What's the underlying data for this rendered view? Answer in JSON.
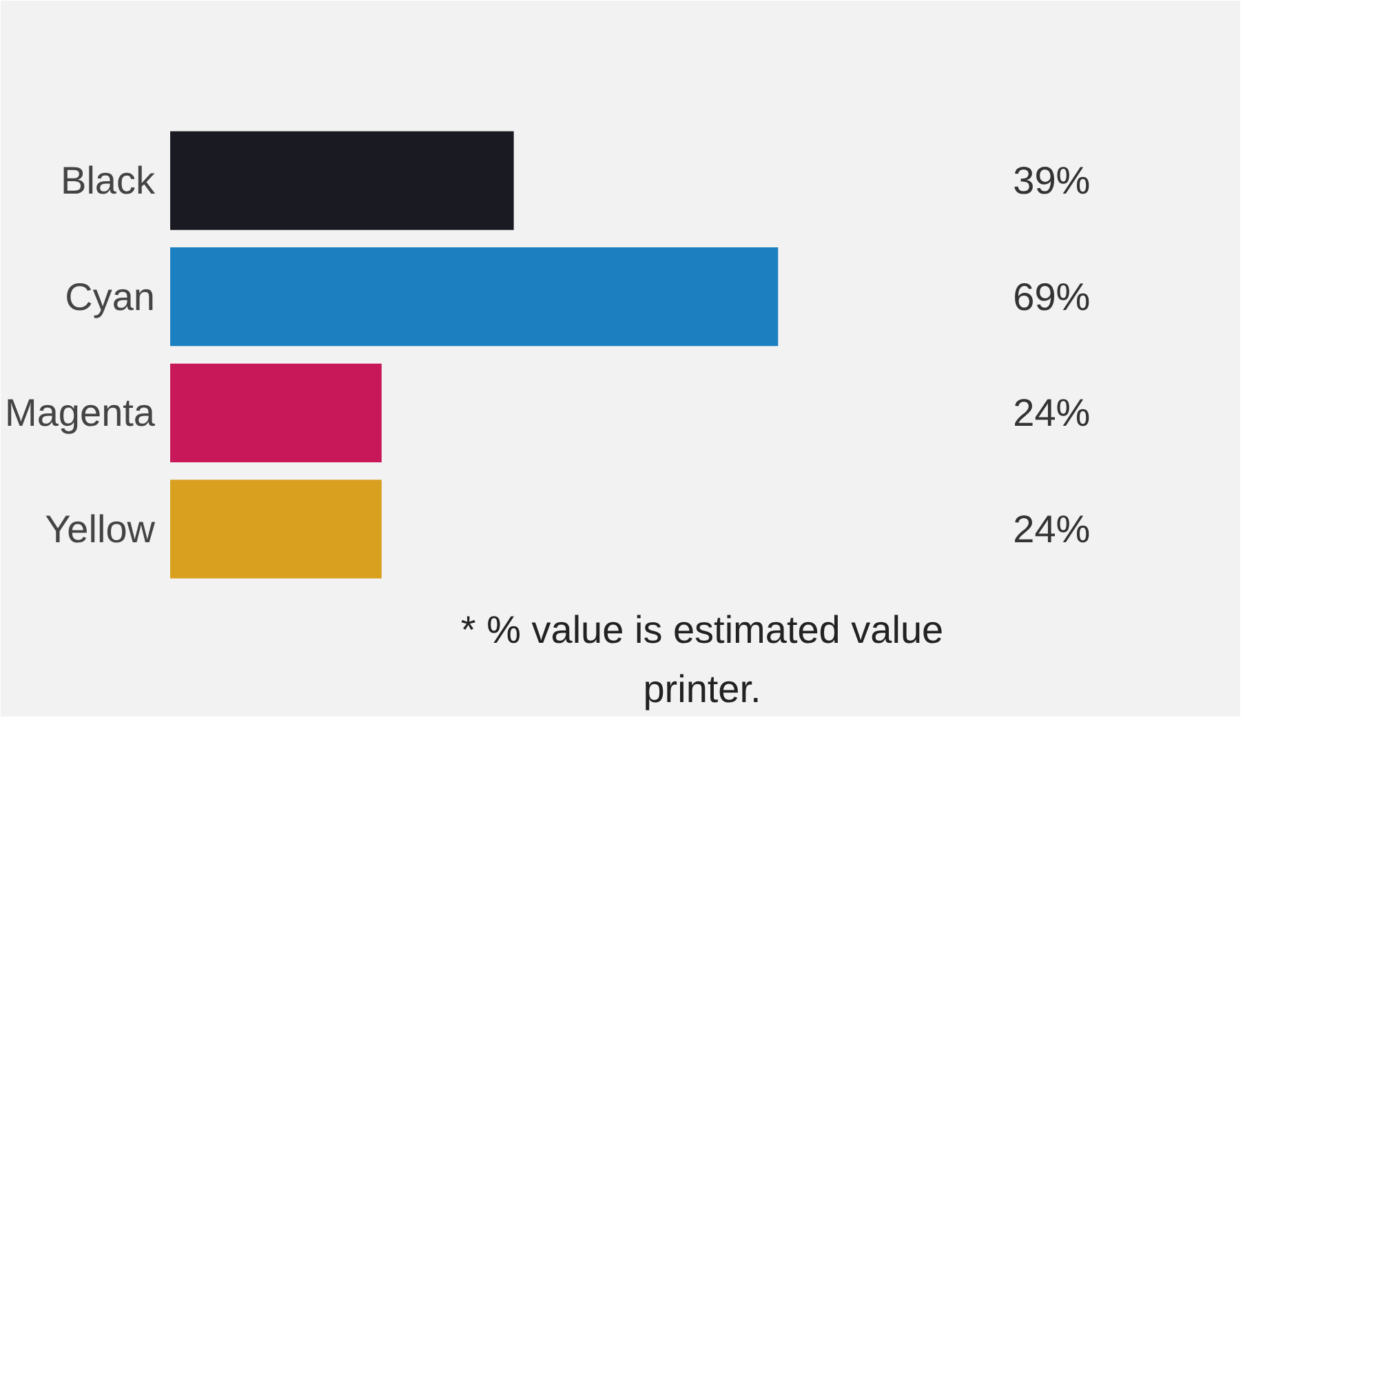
{
  "chart_data": {
    "type": "bar",
    "orientation": "horizontal",
    "categories": [
      "Black",
      "Cyan",
      "Magenta",
      "Yellow"
    ],
    "values": [
      39,
      69,
      24,
      24
    ],
    "colors": [
      "#1a1a22",
      "#1b7fc0",
      "#c8185a",
      "#d9a020"
    ],
    "value_labels": [
      "39%",
      "69%",
      "24%",
      "24%"
    ],
    "grid": false,
    "annotations": [
      "* % value is estimated value",
      "printer."
    ]
  }
}
